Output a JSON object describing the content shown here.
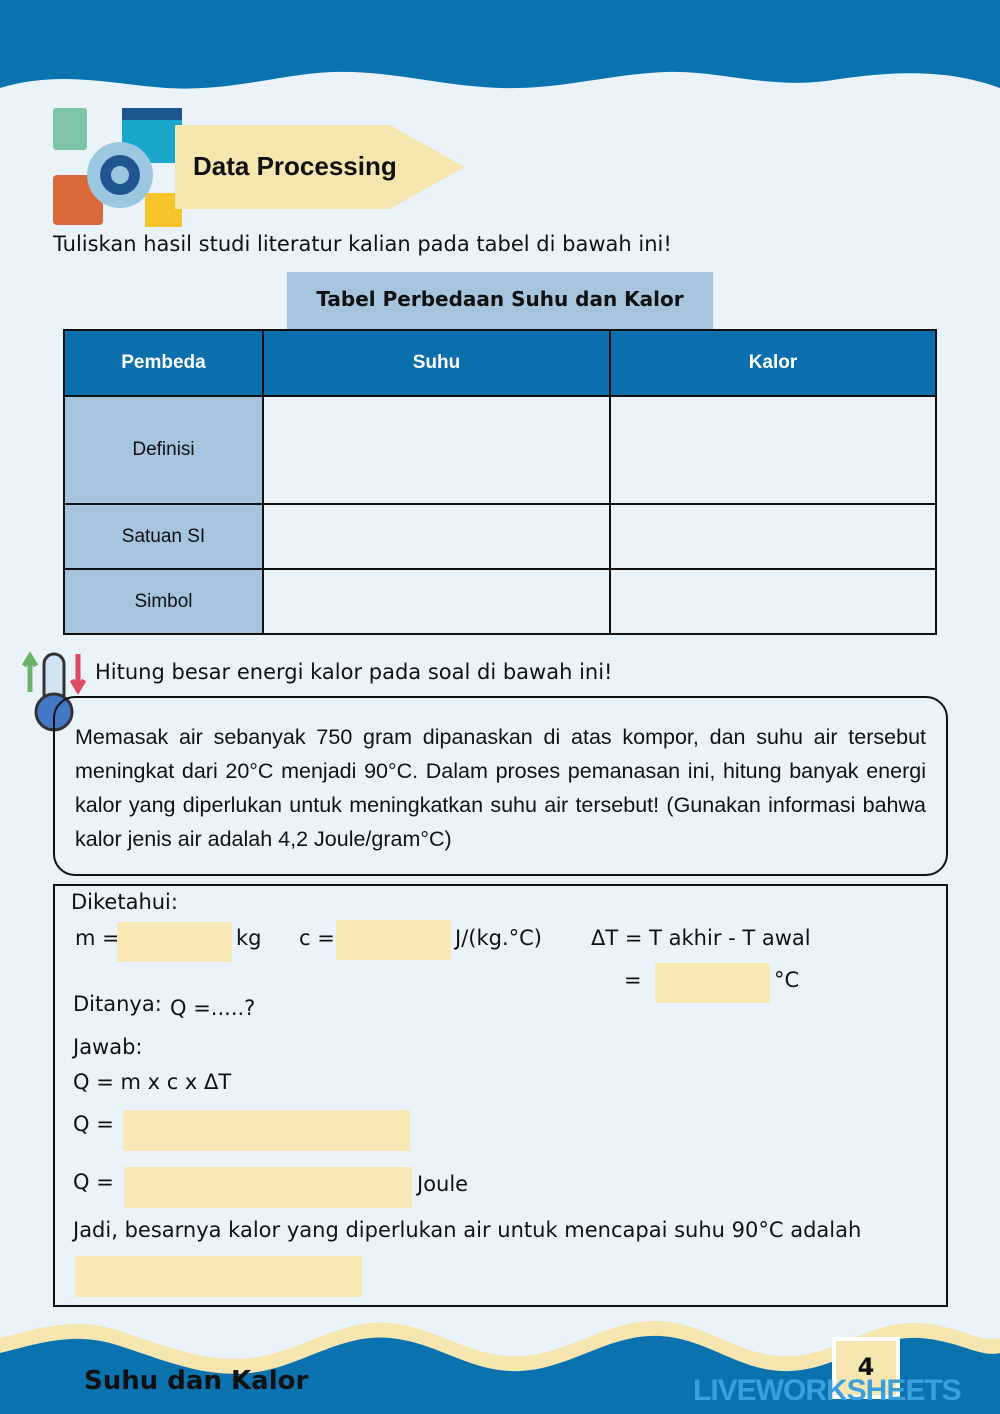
{
  "header": {
    "title": "Data Processing"
  },
  "instruction": "Tuliskan hasil studi literatur kalian pada tabel di bawah ini!",
  "table": {
    "caption": "Tabel Perbedaan Suhu dan Kalor",
    "columns": [
      "Pembeda",
      "Suhu",
      "Kalor"
    ],
    "rows": [
      "Definisi",
      "Satuan SI",
      "Simbol"
    ]
  },
  "task": "Hitung besar energi kalor pada soal di bawah ini!",
  "problem": "Memasak air sebanyak 750 gram dipanaskan di atas kompor, dan suhu air tersebut meningkat dari 20°C menjadi 90°C. Dalam proses pemanasan ini, hitung banyak energi kalor yang diperlukan untuk meningkatkan suhu air tersebut! (Gunakan informasi bahwa kalor jenis air adalah 4,2 Joule/gram°C)",
  "answer": {
    "diketahui": "Diketahui:",
    "m_label": "m =",
    "m_unit": "kg",
    "c_label": "c =",
    "c_unit": "J/(kg.°C)",
    "dt_formula": "ΔT = T akhir - T awal",
    "eq": "=",
    "dt_unit": "°C",
    "ditanya": "Ditanya:",
    "ditanya_q": "Q =.....?",
    "jawab": "Jawab:",
    "formula": "Q =  m x c x ΔT",
    "q1": "Q =",
    "q2": "Q =",
    "q2_unit": "Joule",
    "conclusion": "Jadi, besarnya kalor yang diperlukan air untuk mencapai suhu 90°C adalah"
  },
  "footer": {
    "title": "Suhu dan Kalor",
    "page": "4",
    "watermark": "LIVEWORKSHEETS"
  },
  "colors": {
    "blue": "#0b72b0",
    "cream": "#f7e8b5",
    "cell": "#a7c4de"
  }
}
